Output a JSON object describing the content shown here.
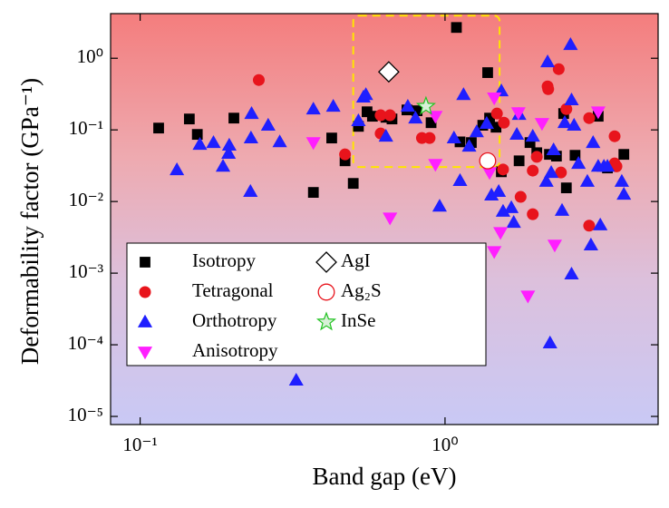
{
  "chart_data": {
    "type": "scatter",
    "x_label": "Band gap (eV)",
    "y_label": "Deformability factor (GPa⁻¹)",
    "xscale": "log",
    "yscale": "log",
    "xlim": [
      0.08,
      5
    ],
    "ylim": [
      7.7e-06,
      4.2
    ],
    "xticks": [
      {
        "value": 0.1,
        "label": "10⁻¹"
      },
      {
        "value": 1,
        "label": "10⁰"
      }
    ],
    "yticks": [
      {
        "value": 1e-05,
        "label": "10⁻⁵"
      },
      {
        "value": 0.0001,
        "label": "10⁻⁴"
      },
      {
        "value": 0.001,
        "label": "10⁻³"
      },
      {
        "value": 0.01,
        "label": "10⁻²"
      },
      {
        "value": 0.1,
        "label": "10⁻¹"
      },
      {
        "value": 1,
        "label": "10⁰"
      }
    ],
    "legend": "lower left",
    "highlight_box": {
      "color": "#ffe500",
      "x": [
        0.5,
        1.51
      ],
      "y": [
        0.0303,
        3.94
      ]
    },
    "series": [
      {
        "name": "Isotropy",
        "marker": "square",
        "color": "#000000",
        "fill": "#000000",
        "x": [
          0.115,
          0.145,
          0.154,
          0.203,
          0.37,
          0.425,
          0.47,
          0.5,
          0.52,
          0.555,
          0.578,
          0.64,
          0.67,
          0.75,
          0.81,
          0.9,
          1.09,
          1.12,
          1.22,
          1.33,
          1.38,
          1.4,
          1.47,
          1.53,
          1.75,
          1.9,
          2.0,
          2.2,
          2.32,
          2.45,
          2.5,
          2.67,
          3.18,
          3.41,
          3.86
        ],
        "values": [
          0.106,
          0.142,
          0.0865,
          0.146,
          0.0134,
          0.077,
          0.037,
          0.0179,
          0.112,
          0.179,
          0.155,
          0.15,
          0.142,
          0.19,
          0.185,
          0.126,
          2.69,
          0.068,
          0.0665,
          0.116,
          0.63,
          0.146,
          0.109,
          0.026,
          0.037,
          0.0665,
          0.048,
          0.0455,
          0.043,
          0.169,
          0.0155,
          0.0442,
          0.155,
          0.0294,
          0.0455
        ]
      },
      {
        "name": "Tetragonal",
        "marker": "circle",
        "color": "#e8141c",
        "fill": "#e8141c",
        "x": [
          0.245,
          0.47,
          0.615,
          0.615,
          0.66,
          0.84,
          0.89,
          1.48,
          1.55,
          1.56,
          1.77,
          1.94,
          1.94,
          2.0,
          2.17,
          2.18,
          2.36,
          2.4,
          2.5,
          2.97,
          2.97,
          3.6,
          3.6,
          3.65
        ],
        "values": [
          0.497,
          0.0455,
          0.16,
          0.089,
          0.16,
          0.077,
          0.077,
          0.169,
          0.028,
          0.126,
          0.0116,
          0.027,
          0.00665,
          0.042,
          0.405,
          0.37,
          0.705,
          0.0254,
          0.195,
          0.146,
          0.0046,
          0.0815,
          0.034,
          0.031
        ]
      },
      {
        "name": "Orthotropy",
        "marker": "triangle-up",
        "color": "#1f1fff",
        "fill": "#1f1fff",
        "x": [
          0.132,
          0.157,
          0.174,
          0.187,
          0.195,
          0.196,
          0.23,
          0.231,
          0.232,
          0.263,
          0.287,
          0.325,
          0.37,
          0.43,
          0.52,
          0.54,
          0.55,
          0.64,
          0.755,
          0.8,
          0.96,
          1.07,
          1.12,
          1.15,
          1.2,
          1.27,
          1.37,
          1.42,
          1.5,
          1.53,
          1.55,
          1.65,
          1.68,
          1.72,
          1.75,
          1.94,
          2.15,
          2.17,
          2.21,
          2.23,
          2.27,
          2.42,
          2.47,
          2.58,
          2.6,
          2.6,
          2.65,
          2.74,
          2.93,
          3.01,
          3.06,
          3.18,
          3.23,
          3.32,
          3.41,
          3.8,
          3.86
        ],
        "values": [
          0.0277,
          0.0627,
          0.0665,
          0.031,
          0.047,
          0.061,
          0.0138,
          0.077,
          0.169,
          0.116,
          0.068,
          3.2e-05,
          0.195,
          0.213,
          0.134,
          0.286,
          0.31,
          0.0815,
          0.213,
          0.146,
          0.0086,
          0.077,
          0.0196,
          0.31,
          0.059,
          0.094,
          0.123,
          0.0123,
          0.0138,
          0.35,
          0.0073,
          0.0082,
          0.0051,
          0.0865,
          0.164,
          0.0815,
          0.0191,
          0.89,
          0.000106,
          0.0254,
          0.0527,
          0.0075,
          0.126,
          1.55,
          0.00097,
          0.262,
          0.116,
          0.034,
          0.0191,
          0.00247,
          0.0665,
          0.031,
          0.0047,
          0.031,
          0.031,
          0.0191,
          0.0126
        ]
      },
      {
        "name": "Anisotropy",
        "marker": "triangle-down",
        "color": "#ff1fff",
        "fill": "#ff1fff",
        "x": [
          0.37,
          0.66,
          0.93,
          0.93,
          1.4,
          1.45,
          1.45,
          1.52,
          1.74,
          1.87,
          2.08,
          2.29,
          3.18
        ],
        "values": [
          0.0665,
          0.0059,
          0.033,
          0.155,
          0.0254,
          0.28,
          0.002,
          0.0037,
          0.174,
          0.00048,
          0.123,
          0.00247,
          0.179
        ]
      },
      {
        "name": "AgI",
        "marker": "diamond",
        "color": "#000000",
        "fill": "#ffffff",
        "x": [
          0.654
        ],
        "values": [
          0.646
        ]
      },
      {
        "name": "Ag₂S",
        "marker": "circle-open",
        "color": "#e8141c",
        "fill": "#ffffff",
        "x": [
          1.38
        ],
        "values": [
          0.037
        ]
      },
      {
        "name": "InSe",
        "marker": "star",
        "color": "#22c322",
        "fill": "#d8f0d8",
        "x": [
          0.866
        ],
        "values": [
          0.213
        ]
      }
    ]
  }
}
